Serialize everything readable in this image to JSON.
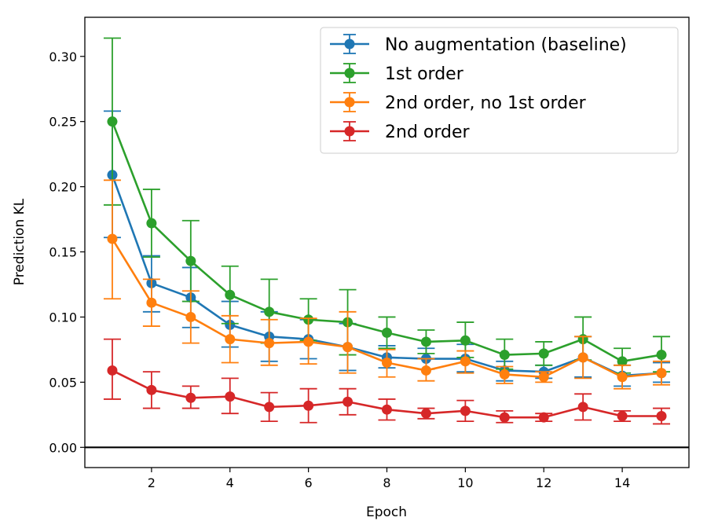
{
  "chart_data": {
    "type": "line",
    "xlabel": "Epoch",
    "ylabel": "Prediction KL",
    "xlim": [
      0.3,
      15.7
    ],
    "ylim": [
      -0.0155,
      0.33
    ],
    "xticks": [
      2,
      4,
      6,
      8,
      10,
      12,
      14
    ],
    "yticks": [
      0.0,
      0.05,
      0.1,
      0.15,
      0.2,
      0.25,
      0.3
    ],
    "ytick_labels": [
      "0.00",
      "0.05",
      "0.10",
      "0.15",
      "0.20",
      "0.25",
      "0.30"
    ],
    "grid": false,
    "legend_position": "top-right",
    "zero_line": true,
    "x": [
      1,
      2,
      3,
      4,
      5,
      6,
      7,
      8,
      9,
      10,
      11,
      12,
      13,
      14,
      15
    ],
    "series": [
      {
        "name": "No augmentation (baseline)",
        "color": "#1f77b4",
        "values": [
          0.209,
          0.126,
          0.115,
          0.094,
          0.085,
          0.083,
          0.077,
          0.069,
          0.068,
          0.068,
          0.059,
          0.058,
          0.069,
          0.055,
          0.057
        ],
        "err_low": [
          0.161,
          0.104,
          0.092,
          0.077,
          0.066,
          0.068,
          0.059,
          0.061,
          0.06,
          0.058,
          0.051,
          0.053,
          0.054,
          0.047,
          0.05
        ],
        "err_high": [
          0.258,
          0.147,
          0.138,
          0.112,
          0.104,
          0.098,
          0.095,
          0.078,
          0.076,
          0.079,
          0.066,
          0.063,
          0.085,
          0.063,
          0.065
        ]
      },
      {
        "name": "1st order",
        "color": "#2ca02c",
        "values": [
          0.25,
          0.172,
          0.143,
          0.117,
          0.104,
          0.098,
          0.096,
          0.088,
          0.081,
          0.082,
          0.071,
          0.072,
          0.083,
          0.066,
          0.071
        ],
        "err_low": [
          0.186,
          0.146,
          0.112,
          0.095,
          0.08,
          0.082,
          0.071,
          0.076,
          0.072,
          0.069,
          0.06,
          0.063,
          0.067,
          0.057,
          0.058
        ],
        "err_high": [
          0.314,
          0.198,
          0.174,
          0.139,
          0.129,
          0.114,
          0.121,
          0.1,
          0.09,
          0.096,
          0.083,
          0.081,
          0.1,
          0.076,
          0.085
        ]
      },
      {
        "name": "2nd order, no 1st order",
        "color": "#ff7f0e",
        "values": [
          0.16,
          0.111,
          0.1,
          0.083,
          0.08,
          0.081,
          0.077,
          0.065,
          0.059,
          0.066,
          0.056,
          0.054,
          0.069,
          0.054,
          0.057
        ],
        "err_low": [
          0.114,
          0.093,
          0.08,
          0.065,
          0.063,
          0.064,
          0.057,
          0.054,
          0.051,
          0.057,
          0.049,
          0.05,
          0.053,
          0.045,
          0.048
        ],
        "err_high": [
          0.205,
          0.129,
          0.12,
          0.101,
          0.098,
          0.099,
          0.104,
          0.075,
          0.068,
          0.074,
          0.062,
          0.058,
          0.085,
          0.063,
          0.066
        ]
      },
      {
        "name": "2nd order",
        "color": "#d62728",
        "values": [
          0.059,
          0.044,
          0.038,
          0.039,
          0.031,
          0.032,
          0.035,
          0.029,
          0.026,
          0.028,
          0.023,
          0.023,
          0.031,
          0.024,
          0.024
        ],
        "err_low": [
          0.037,
          0.03,
          0.03,
          0.026,
          0.02,
          0.019,
          0.025,
          0.021,
          0.022,
          0.02,
          0.019,
          0.02,
          0.021,
          0.02,
          0.018
        ],
        "err_high": [
          0.083,
          0.058,
          0.047,
          0.053,
          0.042,
          0.045,
          0.045,
          0.037,
          0.03,
          0.036,
          0.028,
          0.026,
          0.041,
          0.028,
          0.03
        ]
      }
    ]
  }
}
